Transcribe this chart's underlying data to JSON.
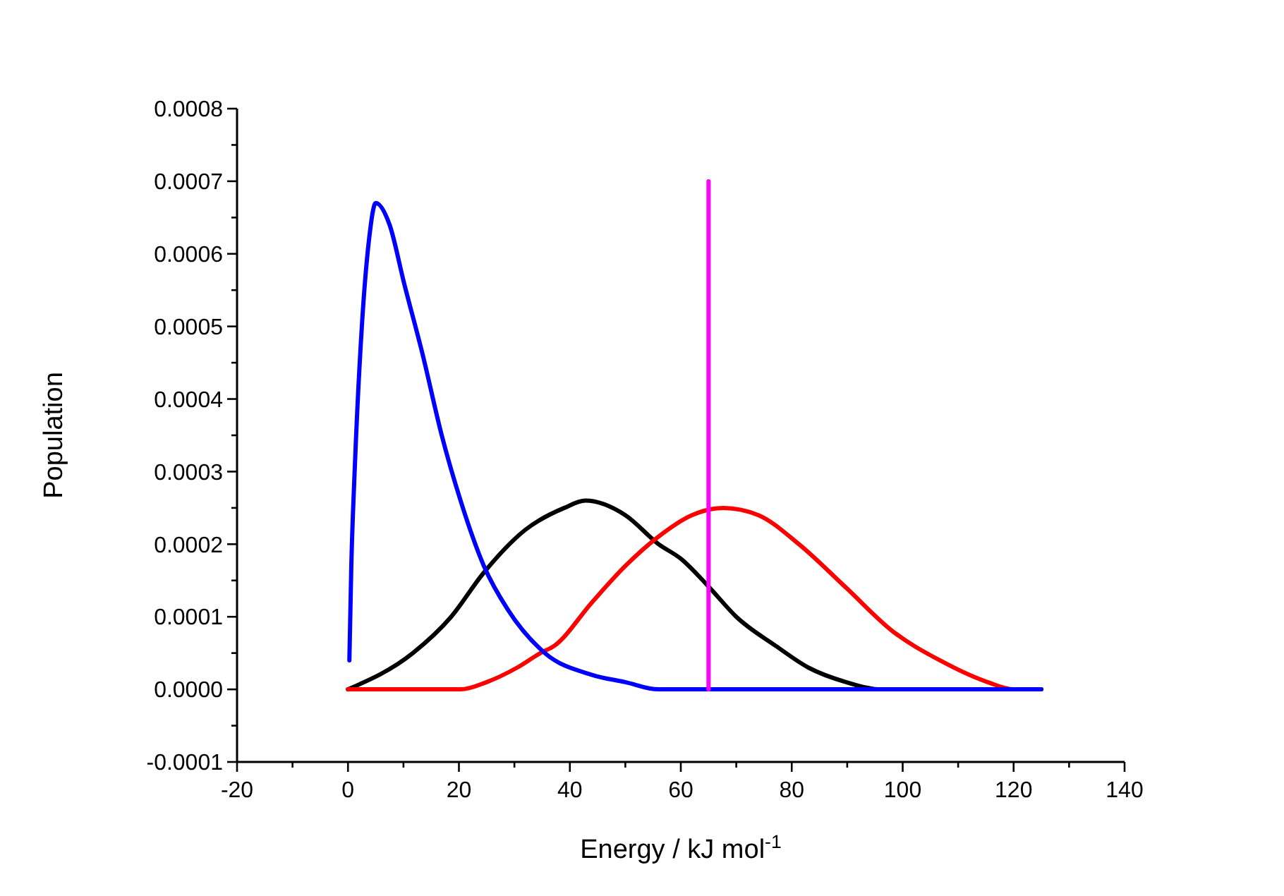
{
  "chart_data": {
    "type": "line",
    "xlabel": "Energy / kJ mol$^{-1}$",
    "ylabel": "Population",
    "xlim": [
      -20,
      140
    ],
    "ylim": [
      -0.0001,
      0.0008
    ],
    "xticks": [
      -20,
      {
        "value": -10,
        "label": null
      },
      0,
      {
        "value": 10,
        "label": null
      },
      20,
      {
        "value": 30,
        "label": null
      },
      40,
      {
        "value": 50,
        "label": null
      },
      60,
      {
        "value": 70,
        "label": null
      },
      80,
      {
        "value": 90,
        "label": null
      },
      100,
      {
        "value": 110,
        "label": null
      },
      120,
      {
        "value": 130,
        "label": null
      },
      140
    ],
    "yticks": [
      {
        "value": -0.0001,
        "label": "-0.0001"
      },
      {
        "value": -5e-05,
        "label": null
      },
      {
        "value": 0,
        "label": "0.0000"
      },
      {
        "value": 5e-05,
        "label": null
      },
      {
        "value": 0.0001,
        "label": "0.0001"
      },
      {
        "value": 0.00015,
        "label": null
      },
      {
        "value": 0.0002,
        "label": "0.0002"
      },
      {
        "value": 0.00025,
        "label": null
      },
      {
        "value": 0.0003,
        "label": "0.0003"
      },
      {
        "value": 0.00035,
        "label": null
      },
      {
        "value": 0.0004,
        "label": "0.0004"
      },
      {
        "value": 0.00045,
        "label": null
      },
      {
        "value": 0.0005,
        "label": "0.0005"
      },
      {
        "value": 0.00055,
        "label": null
      },
      {
        "value": 0.0006,
        "label": "0.0006"
      },
      {
        "value": 0.00065,
        "label": null
      },
      {
        "value": 0.0007,
        "label": "0.0007"
      },
      {
        "value": 0.00075,
        "label": null
      },
      {
        "value": 0.0008,
        "label": "0.0008"
      }
    ],
    "grid": false,
    "line_style": "solid",
    "marker": "none",
    "series": [
      {
        "color": "#000000",
        "x": [
          0,
          11.7,
          18.6,
          24.4,
          32,
          39,
          42.8,
          50,
          56,
          60,
          65.2,
          70,
          77.1,
          83,
          89.8,
          96,
          102.5,
          110
        ],
        "values": [
          0,
          5e-05,
          0.0001,
          0.00016,
          0.00022,
          0.00025,
          0.00026,
          0.00024,
          0.0002,
          0.00018,
          0.00014,
          0.0001,
          6e-05,
          3e-05,
          1e-05,
          0,
          0,
          0
        ]
      },
      {
        "color": "#ff0000",
        "x": [
          0,
          10,
          20.3,
          25,
          30.5,
          34.7,
          37.2,
          44,
          50,
          55.9,
          62,
          67.7,
          74,
          81.3,
          89.8,
          98.2,
          106.7,
          115.3,
          120,
          125
        ],
        "values": [
          0,
          0,
          0,
          1e-05,
          3e-05,
          5e-05,
          6e-05,
          0.00012,
          0.00017,
          0.00021,
          0.00024,
          0.00025,
          0.00024,
          0.0002,
          0.00014,
          8e-05,
          4e-05,
          1e-05,
          0,
          0
        ]
      },
      {
        "color": "#0000ff",
        "x": [
          0.25,
          0.6,
          1.2,
          2.5,
          3.8,
          5,
          7.5,
          10.1,
          13.5,
          16.9,
          20.3,
          24.5,
          28.8,
          35.5,
          44,
          50,
          56,
          70,
          90,
          110,
          125
        ],
        "values": [
          4e-05,
          0.00017,
          0.0003,
          0.0005,
          0.00062,
          0.00067,
          0.00064,
          0.00056,
          0.00046,
          0.00035,
          0.00026,
          0.00017,
          0.00011,
          5e-05,
          2e-05,
          1e-05,
          0,
          0,
          0,
          0,
          0
        ]
      },
      {
        "color": "#ff00ff",
        "x": [
          65,
          65
        ],
        "values": [
          0,
          0.0007
        ]
      }
    ]
  }
}
